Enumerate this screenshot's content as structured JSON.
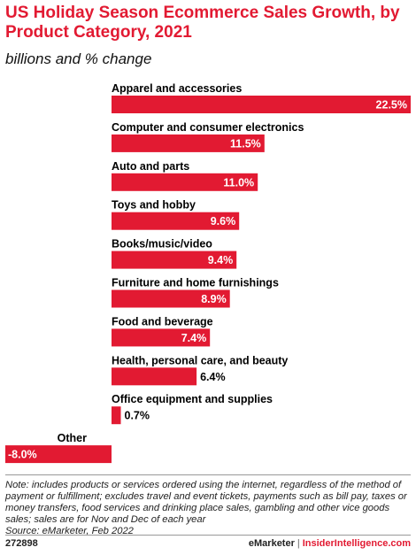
{
  "header": {
    "title": "US Holiday Season Ecommerce Sales Growth, by Product Category, 2021",
    "subtitle": "billions and % change"
  },
  "chart_data": {
    "type": "bar",
    "orientation": "horizontal",
    "title": "US Holiday Season Ecommerce Sales Growth, by Product Category, 2021",
    "subtitle": "billions and % change",
    "categories": [
      "Apparel and accessories",
      "Computer and consumer electronics",
      "Auto and parts",
      "Toys and hobby",
      "Books/music/video",
      "Furniture and home furnishings",
      "Food and beverage",
      "Health, personal care, and beauty",
      "Office equipment and supplies",
      "Other"
    ],
    "values": [
      22.5,
      11.5,
      11.0,
      9.6,
      9.4,
      8.9,
      7.4,
      6.4,
      0.7,
      -8.0
    ],
    "value_labels": [
      "22.5%",
      "11.5%",
      "11.0%",
      "9.6%",
      "9.4%",
      "8.9%",
      "7.4%",
      "6.4%",
      "0.7%",
      "-8.0%"
    ],
    "bar_color": "#e21a32",
    "xlim": [
      -8.0,
      22.5
    ],
    "grid": false,
    "legend": "none"
  },
  "footer": {
    "note": "Note: includes products or services ordered using the internet, regardless of the method of payment or fulfillment; excludes travel and event tickets, payments such as bill pay, taxes or money transfers, food services and drinking place sales, gambling and other vice goods sales; sales are for Nov and Dec of each year",
    "source": "Source: eMarketer, Feb 2022",
    "chart_id": "272898",
    "brand_left": "eMarketer",
    "separator": "|",
    "brand_right": "InsiderIntelligence.com"
  }
}
